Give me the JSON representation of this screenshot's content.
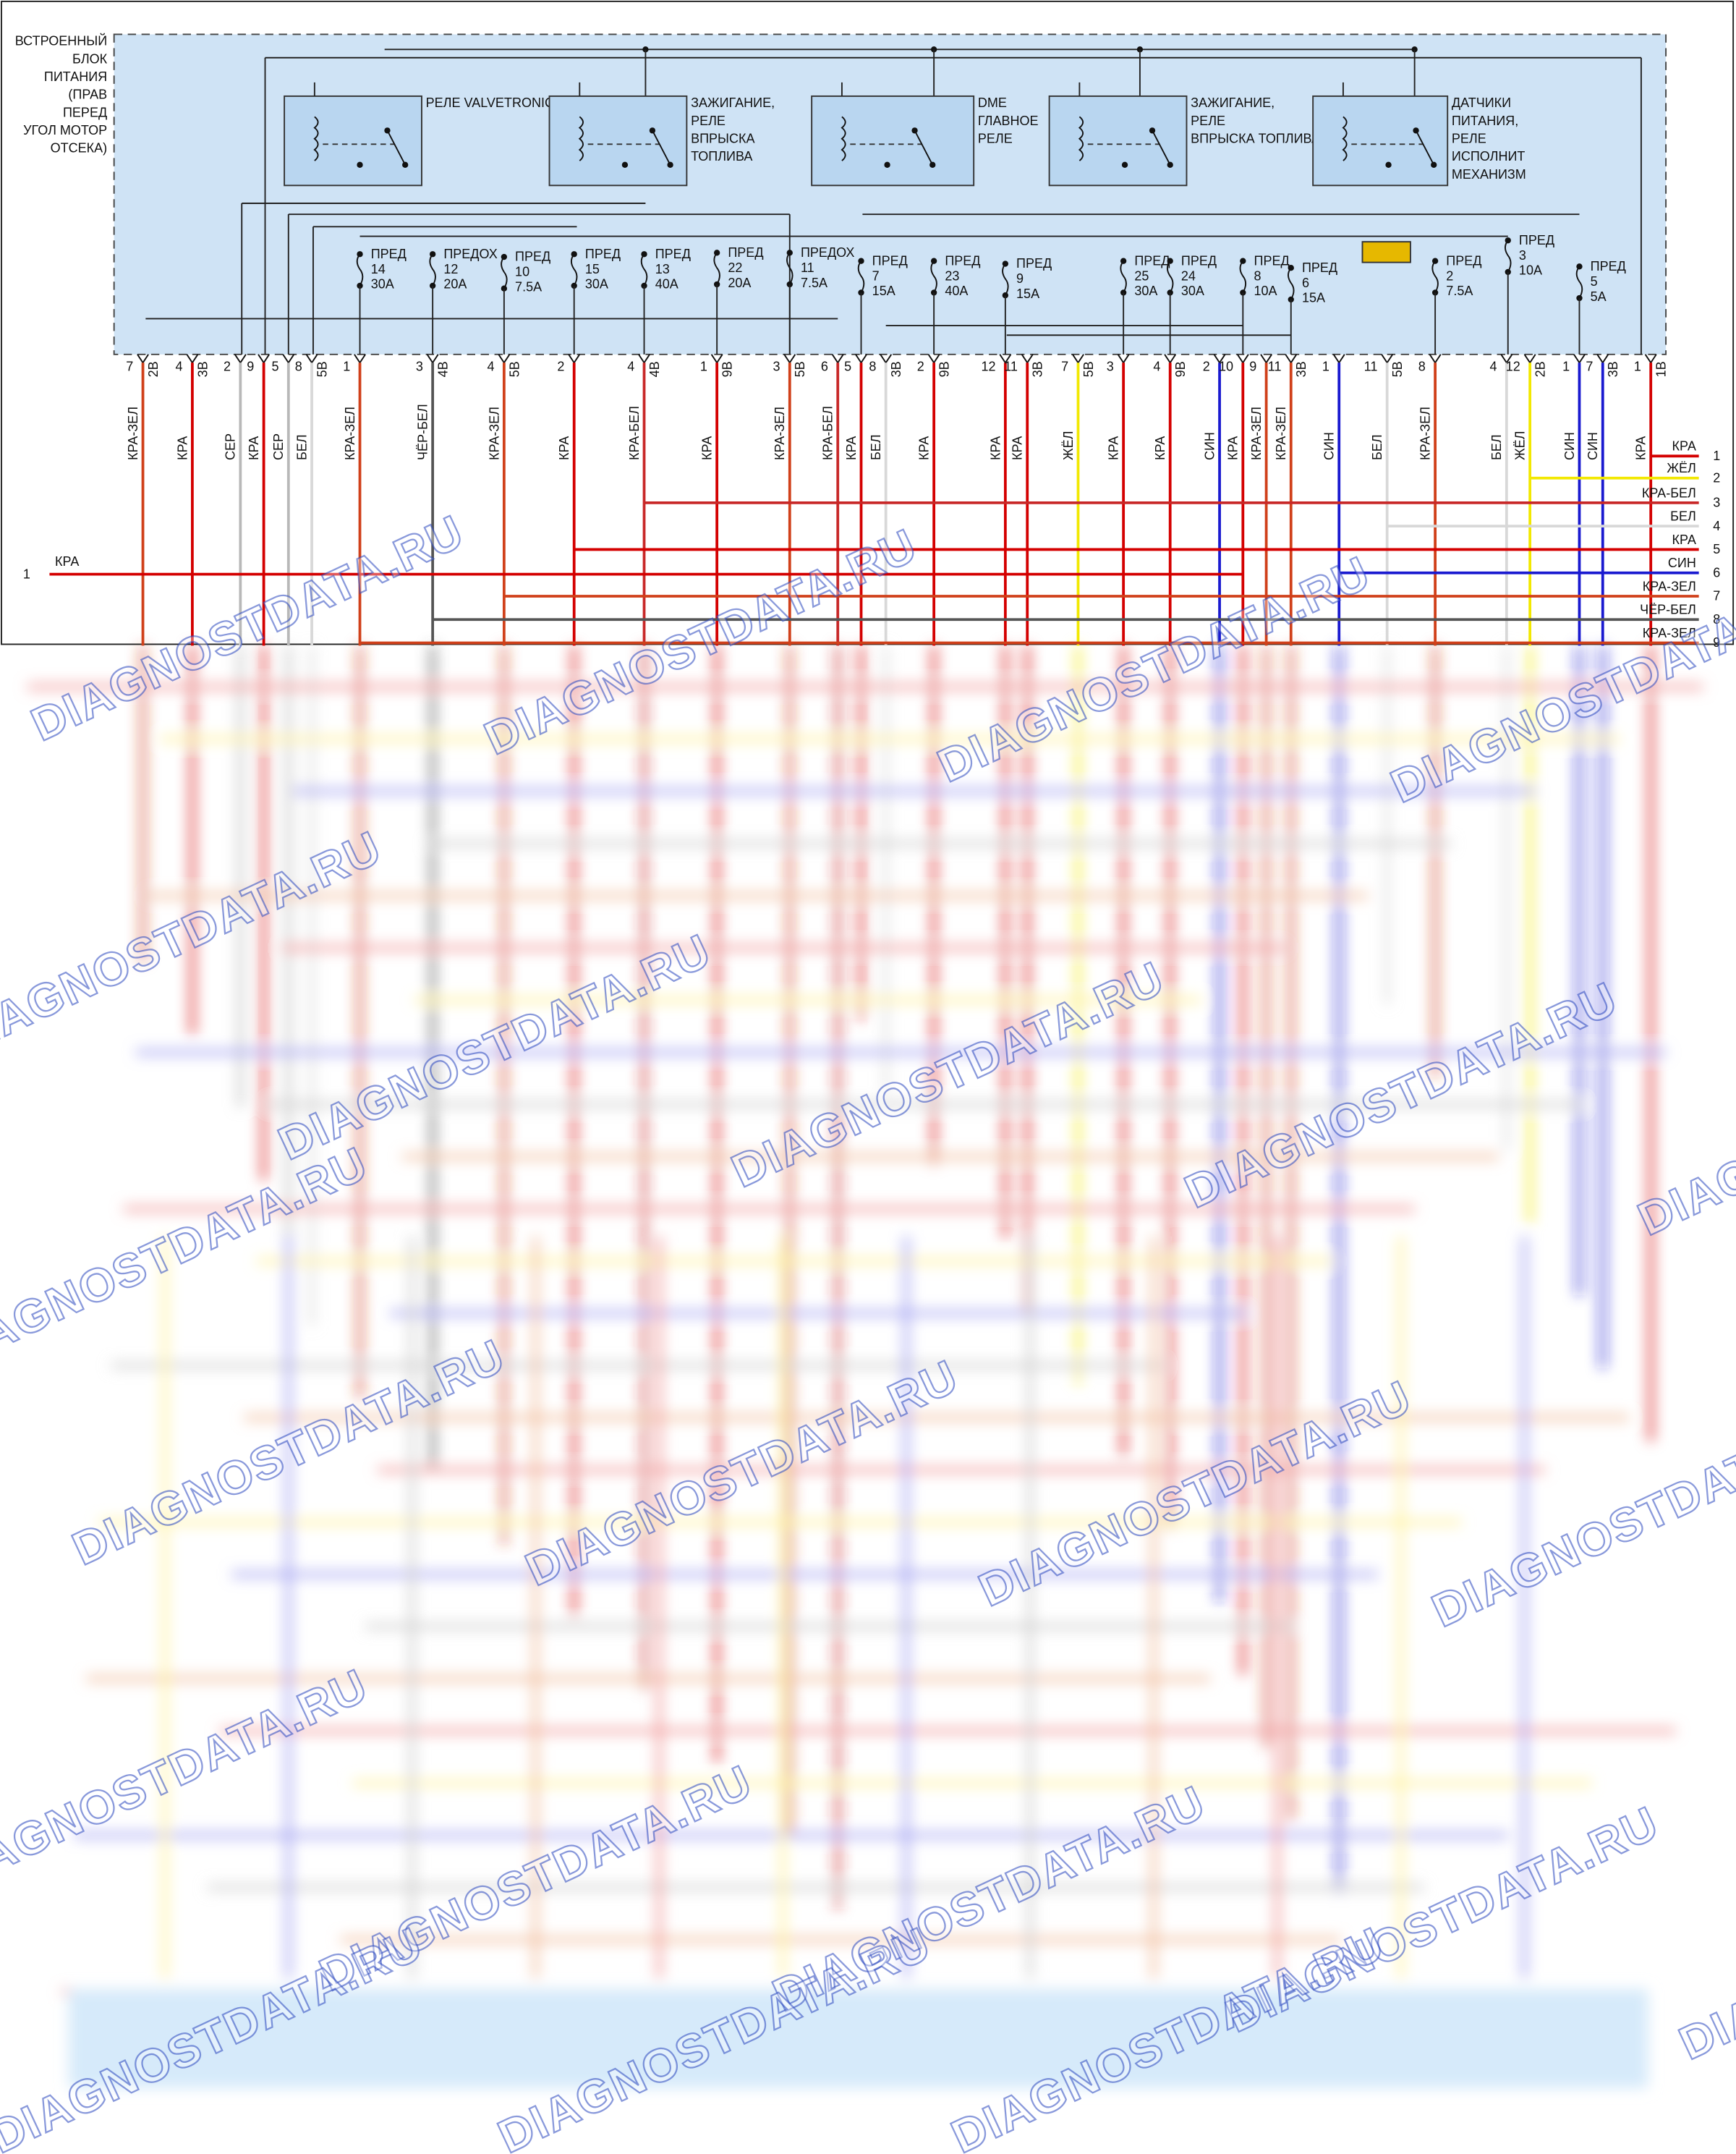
{
  "block": {
    "label": [
      "ВСТРОЕННЫЙ",
      "БЛОК",
      "ПИТАНИЯ",
      "(ПРАВ",
      "ПЕРЕД",
      "УГОЛ МОТОР",
      "ОТСЕКА)"
    ]
  },
  "relays": [
    {
      "label": [
        "РЕЛЕ VALVETRONIC"
      ]
    },
    {
      "label": [
        "ЗАЖИГАНИЕ,",
        "РЕЛЕ",
        "ВПРЫСКА",
        "ТОПЛИВА"
      ]
    },
    {
      "label": [
        "DME",
        "ГЛАВНОЕ",
        "РЕЛЕ"
      ]
    },
    {
      "label": [
        "ЗАЖИГАНИЕ,",
        "РЕЛЕ",
        "ВПРЫСКА ТОПЛИВА"
      ]
    },
    {
      "label": [
        "ДАТЧИКИ",
        "ПИТАНИЯ,",
        "РЕЛЕ",
        "ИСПОЛНИТ",
        "МЕХАНИЗМ"
      ]
    }
  ],
  "fuses": [
    {
      "label": [
        "ПРЕД",
        "14",
        "30А"
      ]
    },
    {
      "label": [
        "ПРЕДОХ",
        "12",
        "20А"
      ]
    },
    {
      "label": [
        "ПРЕД",
        "10",
        "7.5А"
      ]
    },
    {
      "label": [
        "ПРЕД",
        "15",
        "30А"
      ]
    },
    {
      "label": [
        "ПРЕД",
        "13",
        "40А"
      ]
    },
    {
      "label": [
        "ПРЕД",
        "22",
        "20А"
      ]
    },
    {
      "label": [
        "ПРЕДОХ",
        "11",
        "7.5А"
      ]
    },
    {
      "label": [
        "ПРЕД",
        "7",
        "15А"
      ]
    },
    {
      "label": [
        "ПРЕД",
        "23",
        "40А"
      ]
    },
    {
      "label": [
        "ПРЕД",
        "9",
        "15А"
      ]
    },
    {
      "label": [
        "ПРЕД",
        "25",
        "30А"
      ]
    },
    {
      "label": [
        "ПРЕД",
        "24",
        "30А"
      ]
    },
    {
      "label": [
        "ПРЕД",
        "8",
        "10А"
      ]
    },
    {
      "label": [
        "ПРЕД",
        "6",
        "15А"
      ]
    },
    {
      "label": [
        "ПРЕД",
        "2",
        "7.5А"
      ]
    },
    {
      "label": [
        "ПРЕД",
        "3",
        "10А"
      ]
    },
    {
      "label": [
        "ПРЕД",
        "5",
        "5А"
      ]
    }
  ],
  "pins": [
    {
      "pin": "7",
      "conn": "2В",
      "wire": "КРА-ЗЕЛ",
      "color": "#d0401a"
    },
    {
      "pin": "4",
      "conn": "3В",
      "wire": "КРА",
      "color": "#d40000"
    },
    {
      "pin": "2",
      "wire": "СЕР",
      "color": "#b8b8b8"
    },
    {
      "pin": "9",
      "wire": "КРА",
      "color": "#d40000"
    },
    {
      "pin": "5",
      "wire": "СЕР",
      "color": "#b8b8b8"
    },
    {
      "pin": "8",
      "conn": "5В",
      "wire": "БЕЛ",
      "color": "#d8d8d8"
    },
    {
      "pin": "1",
      "wire": "КРА-ЗЕЛ",
      "color": "#d0401a"
    },
    {
      "pin": "3",
      "conn": "4В",
      "wire": "ЧЁР-БЕЛ",
      "color": "#555555"
    },
    {
      "pin": "4",
      "conn": "5В",
      "wire": "КРА-ЗЕЛ",
      "color": "#d0401a"
    },
    {
      "pin": "2",
      "wire": "КРА",
      "color": "#d40000"
    },
    {
      "pin": "4",
      "conn": "4В",
      "wire": "КРА-БЕЛ",
      "color": "#c82828"
    },
    {
      "pin": "1",
      "conn": "9В",
      "wire": "КРА",
      "color": "#d40000"
    },
    {
      "pin": "3",
      "conn": "5В",
      "wire": "КРА-ЗЕЛ",
      "color": "#d0401a"
    },
    {
      "pin": "6",
      "wire": "КРА-БЕЛ",
      "color": "#c82828"
    },
    {
      "pin": "5",
      "wire": "КРА",
      "color": "#d40000"
    },
    {
      "pin": "8",
      "conn": "3В",
      "wire": "БЕЛ",
      "color": "#d8d8d8"
    },
    {
      "pin": "2",
      "conn": "9В",
      "wire": "КРА",
      "color": "#d40000"
    },
    {
      "pin": "12",
      "wire": "КРА",
      "color": "#d40000"
    },
    {
      "pin": "11",
      "conn": "3В",
      "wire": "КРА",
      "color": "#d40000"
    },
    {
      "pin": "7",
      "conn": "5В",
      "wire": "ЖЁЛ",
      "color": "#f2e800"
    },
    {
      "pin": "3",
      "wire": "КРА",
      "color": "#d40000"
    },
    {
      "pin": "4",
      "conn": "9В",
      "wire": "КРА",
      "color": "#d40000"
    },
    {
      "pin": "2",
      "wire": "СИН",
      "color": "#1a1ad0"
    },
    {
      "pin": "10",
      "wire": "КРА",
      "color": "#d40000"
    },
    {
      "pin": "9",
      "wire": "КРА-ЗЕЛ",
      "color": "#d0401a"
    },
    {
      "pin": "11",
      "conn": "3В",
      "wire": "КРА-ЗЕЛ",
      "color": "#d0401a"
    },
    {
      "pin": "1",
      "wire": "СИН",
      "color": "#1a1ad0"
    },
    {
      "pin": "11",
      "conn": "5В",
      "wire": "БЕЛ",
      "color": "#d8d8d8"
    },
    {
      "pin": "8",
      "wire": "КРА-ЗЕЛ",
      "color": "#d0401a"
    },
    {
      "pin": "4",
      "wire": "БЕЛ",
      "color": "#d8d8d8"
    },
    {
      "pin": "12",
      "conn": "2В",
      "wire": "ЖЁЛ",
      "color": "#f2e800"
    },
    {
      "pin": "1",
      "wire": "СИН",
      "color": "#1a1ad0"
    },
    {
      "pin": "7",
      "conn": "3В",
      "wire": "СИН",
      "color": "#1a1ad0"
    },
    {
      "pin": "1",
      "conn": "1В",
      "wire": "КРА",
      "color": "#d40000"
    }
  ],
  "harness": [
    {
      "number": "1",
      "wire": "КРА",
      "color": "#d40000"
    },
    {
      "number": "2",
      "wire": "ЖЁЛ",
      "color": "#f2e800"
    },
    {
      "number": "3",
      "wire": "КРА-БЕЛ",
      "color": "#c82828"
    },
    {
      "number": "4",
      "wire": "БЕЛ",
      "color": "#d8d8d8"
    },
    {
      "number": "5",
      "wire": "КРА",
      "color": "#d40000"
    },
    {
      "number": "6",
      "wire": "СИН",
      "color": "#1a1ad0"
    },
    {
      "number": "7",
      "wire": "КРА-ЗЕЛ",
      "color": "#d0401a"
    },
    {
      "number": "8",
      "wire": "ЧЁР-БЕЛ",
      "color": "#555555"
    },
    {
      "number": "9",
      "wire": "КРА-ЗЕЛ",
      "color": "#d0401a"
    }
  ],
  "input": {
    "number": "1",
    "wire": "КРА",
    "color": "#d40000"
  },
  "watermark": "DIAGNOSTDATA.RU"
}
